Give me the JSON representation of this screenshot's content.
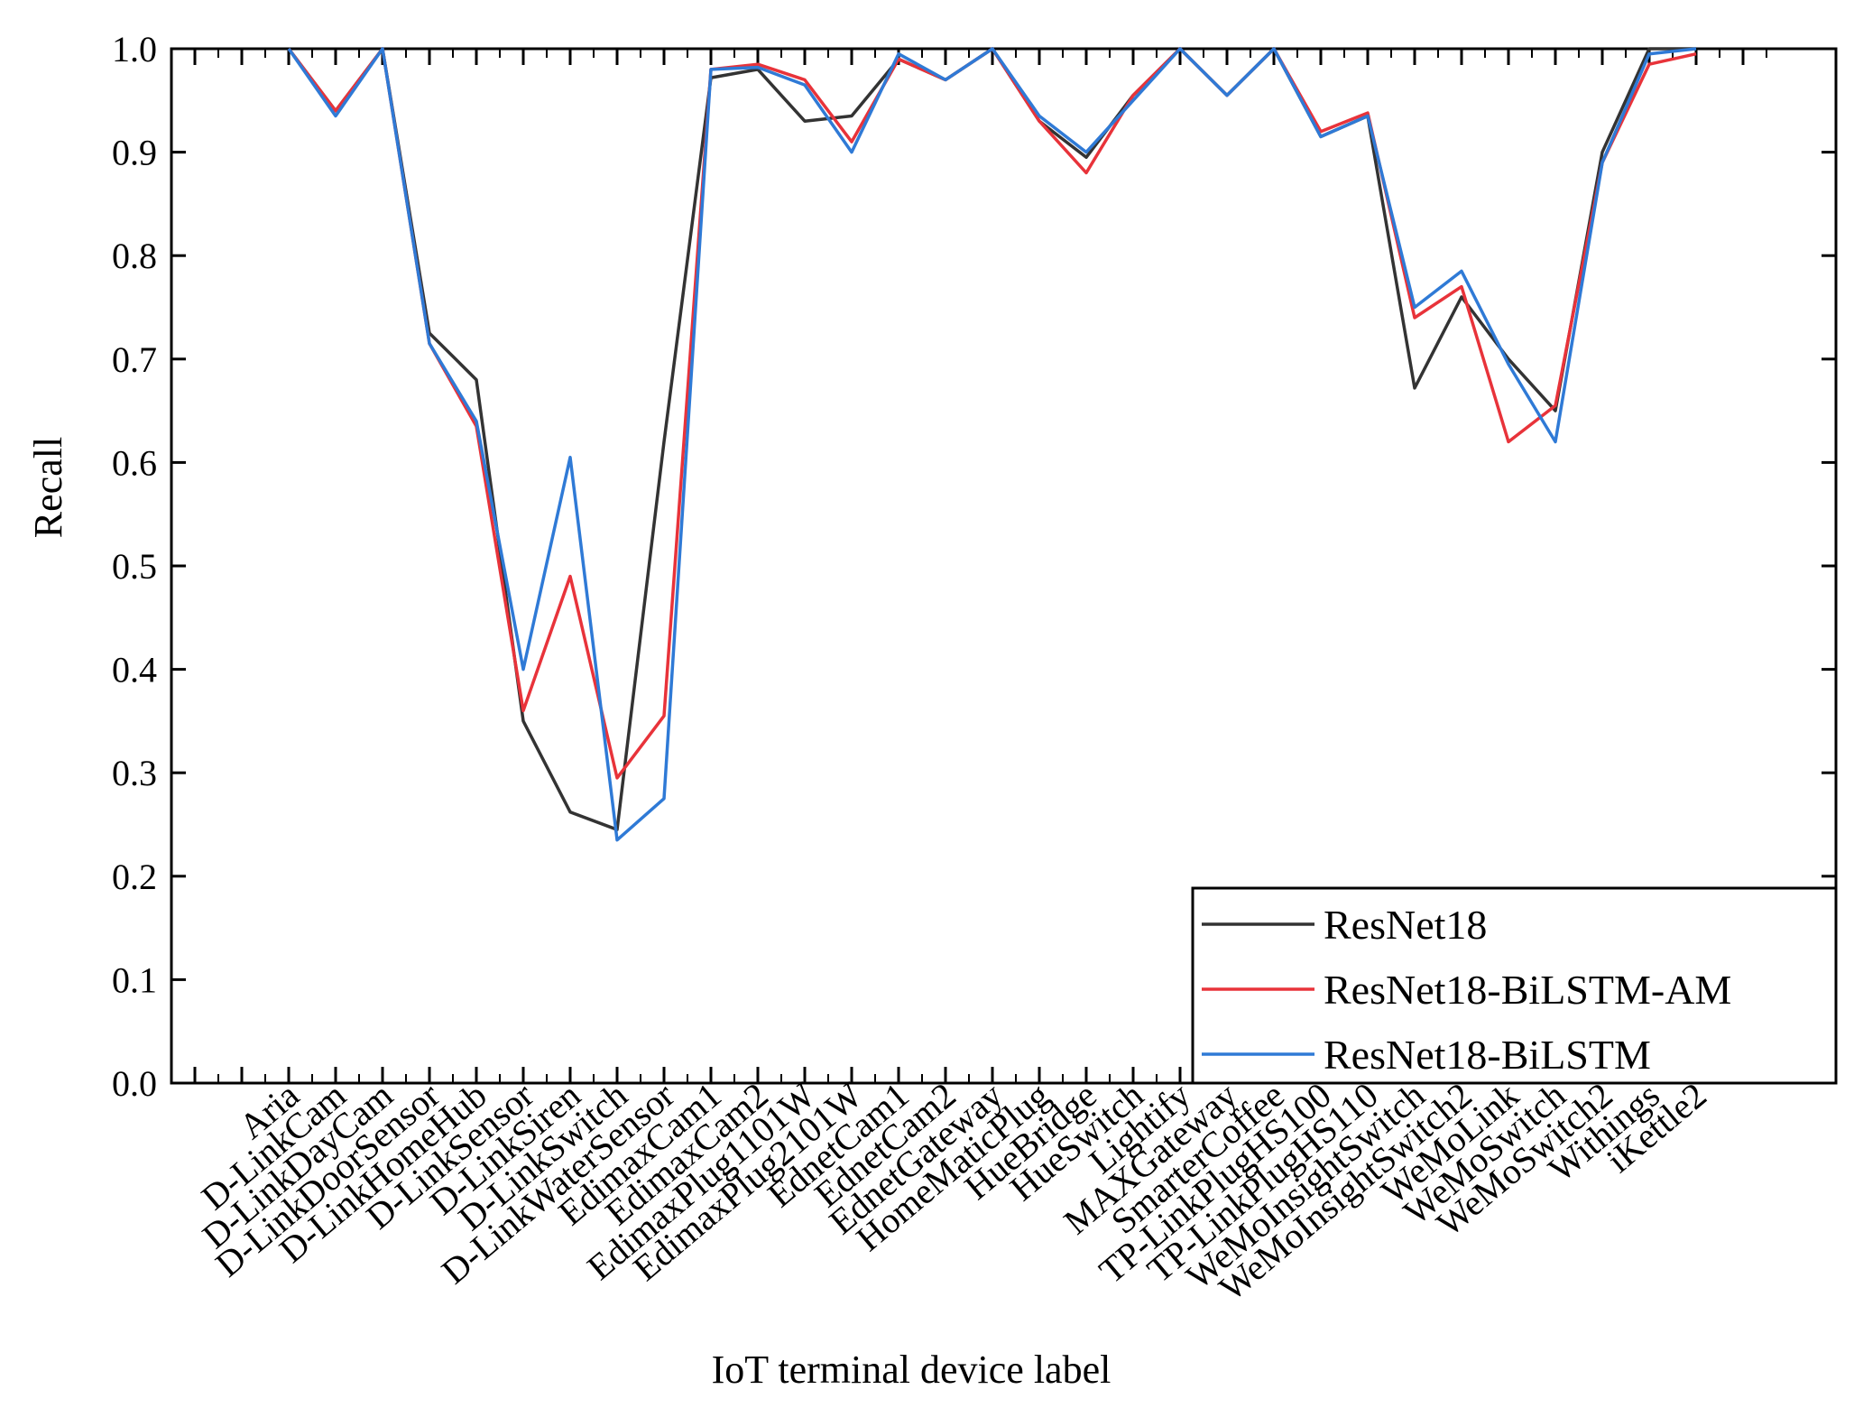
{
  "chart_data": {
    "type": "line",
    "xlabel": "IoT terminal device label",
    "ylabel": "Recall",
    "ylim": [
      0,
      1
    ],
    "yticks": [
      "0.0",
      "0.1",
      "0.2",
      "0.3",
      "0.4",
      "0.5",
      "0.6",
      "0.7",
      "0.8",
      "0.9",
      "1.0"
    ],
    "grid": false,
    "legend_position": "bottom-right",
    "categories": [
      "Aria",
      "D-LinkCam",
      "D-LinkDayCam",
      "D-LinkDoorSensor",
      "D-LinkHomeHub",
      "D-LinkSensor",
      "D-LinkSiren",
      "D-LinkSwitch",
      "D-LinkWaterSensor",
      "EdimaxCam1",
      "EdimaxCam2",
      "EdimaxPlug1101W",
      "EdimaxPlug2101W",
      "EdnetCam1",
      "EdnetCam2",
      "EdnetGateway",
      "HomeMaticPlug",
      "HueBridge",
      "HueSwitch",
      "Lightify",
      "MAXGateway",
      "SmarterCoffee",
      "TP-LinkPlugHS100",
      "TP-LinkPlugHS110",
      "WeMoInsightSwitch",
      "WeMoInsightSwitch2",
      "WeMoLink",
      "WeMoSwitch",
      "WeMoSwitch2",
      "Withings",
      "iKettle2"
    ],
    "series": [
      {
        "name": "ResNet18",
        "color": "#333333",
        "values": [
          1.0,
          0.94,
          1.0,
          0.725,
          0.68,
          0.35,
          0.262,
          0.245,
          0.62,
          0.972,
          0.98,
          0.93,
          0.935,
          0.99,
          0.97,
          1.0,
          0.93,
          0.895,
          0.955,
          1.0,
          0.955,
          1.0,
          0.915,
          0.935,
          0.672,
          0.76,
          0.7,
          0.65,
          0.9,
          1.0,
          1.0
        ]
      },
      {
        "name": "ResNet18-BiLSTM-AM",
        "color": "#e8333a",
        "values": [
          1.0,
          0.94,
          1.0,
          0.715,
          0.635,
          0.36,
          0.49,
          0.295,
          0.355,
          0.98,
          0.985,
          0.97,
          0.91,
          0.99,
          0.97,
          1.0,
          0.93,
          0.88,
          0.955,
          1.0,
          0.955,
          1.0,
          0.92,
          0.938,
          0.74,
          0.77,
          0.62,
          0.655,
          0.89,
          0.985,
          0.995
        ]
      },
      {
        "name": "ResNet18-BiLSTM",
        "color": "#2f7ad6",
        "values": [
          1.0,
          0.935,
          1.0,
          0.715,
          0.64,
          0.4,
          0.605,
          0.235,
          0.275,
          0.98,
          0.982,
          0.965,
          0.9,
          0.995,
          0.97,
          1.0,
          0.935,
          0.9,
          0.95,
          1.0,
          0.955,
          1.0,
          0.915,
          0.935,
          0.75,
          0.785,
          0.695,
          0.62,
          0.89,
          0.995,
          1.0
        ]
      }
    ]
  }
}
